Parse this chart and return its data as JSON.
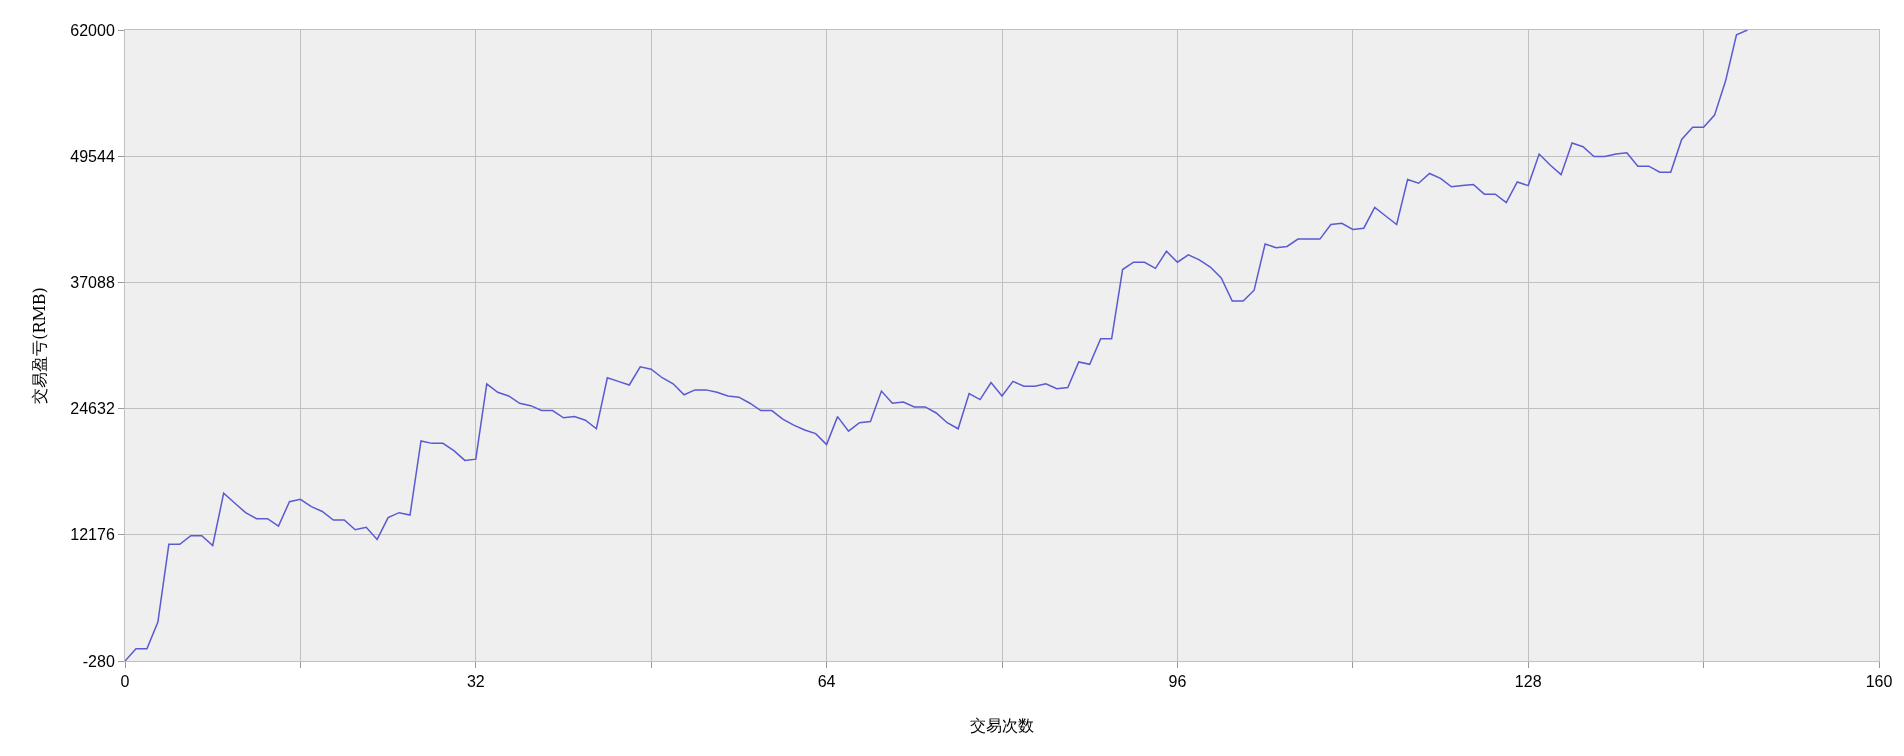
{
  "chart_data": {
    "type": "line",
    "xlabel": "交易次数",
    "ylabel": "交易盈亏(RMB)",
    "x": [
      0,
      1,
      2,
      3,
      4,
      5,
      6,
      7,
      8,
      9,
      10,
      11,
      12,
      13,
      14,
      15,
      16,
      17,
      18,
      19,
      20,
      21,
      22,
      23,
      24,
      25,
      26,
      27,
      28,
      29,
      30,
      31,
      32,
      33,
      34,
      35,
      36,
      37,
      38,
      39,
      40,
      41,
      42,
      43,
      44,
      45,
      46,
      47,
      48,
      49,
      50,
      51,
      52,
      53,
      54,
      55,
      56,
      57,
      58,
      59,
      60,
      61,
      62,
      63,
      64,
      65,
      66,
      67,
      68,
      69,
      70,
      71,
      72,
      73,
      74,
      75,
      76,
      77,
      78,
      79,
      80,
      81,
      82,
      83,
      84,
      85,
      86,
      87,
      88,
      89,
      90,
      91,
      92,
      93,
      94,
      95,
      96,
      97,
      98,
      99,
      100,
      101,
      102,
      103,
      104,
      105,
      106,
      107,
      108,
      109,
      110,
      111,
      112,
      113,
      114,
      115,
      116,
      117,
      118,
      119,
      120,
      121,
      122,
      123,
      124,
      125,
      126,
      127,
      128,
      129,
      130,
      131,
      132,
      133,
      134,
      135,
      136,
      137,
      138,
      139,
      140,
      141,
      142,
      143,
      144,
      145,
      146,
      147,
      148
    ],
    "series": [
      {
        "color": "#5a5ad2",
        "values": [
          -280,
          920,
          920,
          3560,
          11240,
          11240,
          12080,
          12080,
          11120,
          16280,
          15320,
          14360,
          13760,
          13760,
          13040,
          15440,
          15680,
          14960,
          14480,
          13640,
          13640,
          12680,
          12920,
          11720,
          13880,
          14360,
          14120,
          21440,
          21200,
          21200,
          20480,
          19520,
          19640,
          27080,
          26240,
          25880,
          25160,
          24920,
          24440,
          24440,
          23720,
          23840,
          23480,
          22640,
          27680,
          27320,
          26960,
          28760,
          28520,
          27680,
          27080,
          26000,
          26480,
          26480,
          26240,
          25880,
          25760,
          25160,
          24440,
          24440,
          23600,
          23000,
          22520,
          22160,
          21080,
          23840,
          22400,
          23240,
          23360,
          26360,
          25160,
          25280,
          24800,
          24800,
          24200,
          23240,
          22640,
          26120,
          25520,
          27200,
          25880,
          27320,
          26840,
          26840,
          27080,
          26600,
          26720,
          29240,
          29000,
          31520,
          31520,
          38360,
          39080,
          39080,
          38480,
          40160,
          39080,
          39800,
          39320,
          38600,
          37520,
          35240,
          35240,
          36320,
          40880,
          40520,
          40640,
          41360,
          41360,
          41360,
          42800,
          42920,
          42320,
          42440,
          44480,
          43640,
          42800,
          47240,
          46880,
          47840,
          47360,
          46520,
          46640,
          46760,
          45800,
          45800,
          44960,
          47000,
          46640,
          49760,
          48680,
          47720,
          50840,
          50480,
          49520,
          49520,
          49760,
          49880,
          48560,
          48560,
          47960,
          47960,
          51200,
          52400,
          52400,
          53600,
          56960,
          61520,
          62000
        ]
      }
    ],
    "xlim": [
      0,
      160
    ],
    "xticks": [
      0,
      {
        "value": 16,
        "label": null
      },
      32,
      {
        "value": 48,
        "label": null
      },
      64,
      {
        "value": 80,
        "label": null
      },
      96,
      {
        "value": 112,
        "label": null
      },
      128,
      {
        "value": 144,
        "label": null
      },
      160
    ],
    "ylim": [
      -280,
      62000
    ],
    "yticks": [
      -280,
      12176,
      24632,
      37088,
      49544,
      62000
    ],
    "grid": true,
    "legend": false,
    "marker": "none",
    "line_style": "solid"
  }
}
